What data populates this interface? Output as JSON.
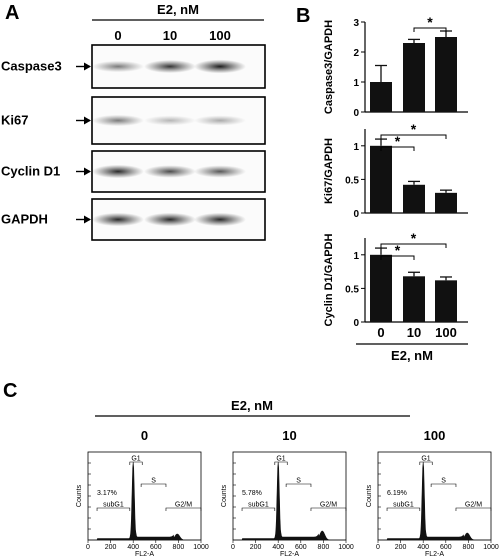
{
  "panels": {
    "a": "A",
    "b": "B",
    "c": "C"
  },
  "panel_a": {
    "condition": "E2, nM",
    "doses": [
      "0",
      "10",
      "100"
    ],
    "blots": [
      {
        "label": "Caspase3",
        "intensities": [
          0.55,
          0.85,
          0.95
        ]
      },
      {
        "label": "Ki67",
        "intensities": [
          0.55,
          0.3,
          0.35
        ]
      },
      {
        "label": "Cyclin D1",
        "intensities": [
          0.9,
          0.75,
          0.7
        ]
      },
      {
        "label": "GAPDH",
        "intensities": [
          0.9,
          0.9,
          0.9
        ]
      }
    ]
  },
  "panel_b": {
    "xlabel": "E2, nM",
    "significance_marker": "*"
  },
  "chart_data": [
    {
      "type": "bar",
      "categories": [
        "0",
        "10",
        "100"
      ],
      "values": [
        1.0,
        2.3,
        2.5
      ],
      "errors": [
        0.55,
        0.12,
        0.2
      ],
      "ylabel": "Caspase3/GAPDH",
      "ylim": [
        0,
        3
      ],
      "yticks": [
        "0",
        "1",
        "2",
        "3"
      ],
      "significance": [
        {
          "from": "10",
          "to": "100",
          "label": "*"
        }
      ]
    },
    {
      "type": "bar",
      "categories": [
        "0",
        "10",
        "100"
      ],
      "values": [
        1.0,
        0.42,
        0.3
      ],
      "errors": [
        0.1,
        0.05,
        0.04
      ],
      "ylabel": "Ki67/GAPDH",
      "ylim": [
        0,
        1.25
      ],
      "yticks": [
        "0",
        "0.5",
        "1"
      ],
      "significance": [
        {
          "from": "0",
          "to": "10",
          "label": "*"
        },
        {
          "from": "0",
          "to": "100",
          "label": "*"
        }
      ]
    },
    {
      "type": "bar",
      "categories": [
        "0",
        "10",
        "100"
      ],
      "values": [
        1.0,
        0.68,
        0.62
      ],
      "errors": [
        0.1,
        0.06,
        0.05
      ],
      "ylabel": "Cyclin D1/GAPDH",
      "ylim": [
        0,
        1.25
      ],
      "yticks": [
        "0",
        "0.5",
        "1"
      ],
      "significance": [
        {
          "from": "0",
          "to": "10",
          "label": "*"
        },
        {
          "from": "0",
          "to": "100",
          "label": "*"
        }
      ]
    }
  ],
  "panel_c": {
    "condition": "E2, nM",
    "xlabel": "FL2-A",
    "ylabel": "Counts",
    "xticks": [
      "0",
      "200",
      "400",
      "600",
      "800",
      "1000"
    ],
    "gates": {
      "subg1": "subG1",
      "g1": "G1",
      "s": "S",
      "g2m": "G2/M"
    },
    "histograms": [
      {
        "dose": "0",
        "subg1_percent": "3.17%"
      },
      {
        "dose": "10",
        "subg1_percent": "5.78%"
      },
      {
        "dose": "100",
        "subg1_percent": "6.19%"
      }
    ]
  }
}
